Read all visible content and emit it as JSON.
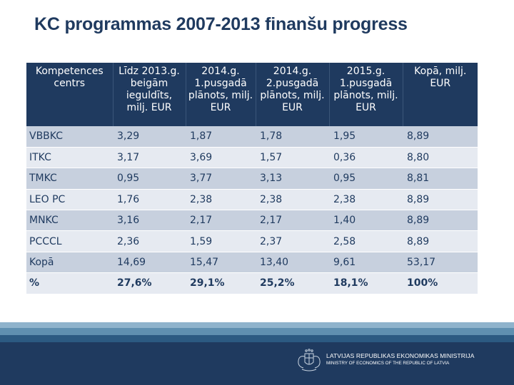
{
  "title": "KC programmas 2007-2013 finanšu progress",
  "table": {
    "headers": [
      "Kompetences centrs",
      "Līdz 2013.g. beigām ieguldīts, milj. EUR",
      "2014.g. 1.pusgadā plānots, milj. EUR",
      "2014.g. 2.pusgadā plānots, milj. EUR",
      "2015.g. 1.pusgadā plānots, milj. EUR",
      "Kopā, milj. EUR"
    ],
    "rows": [
      [
        "VBBKC",
        "3,29",
        "1,87",
        "1,78",
        "1,95",
        "8,89"
      ],
      [
        "ITKC",
        "3,17",
        "3,69",
        "1,57",
        "0,36",
        "8,80"
      ],
      [
        "TMKC",
        "0,95",
        "3,77",
        "3,13",
        "0,95",
        "8,81"
      ],
      [
        "LEO PC",
        "1,76",
        "2,38",
        "2,38",
        "2,38",
        "8,89"
      ],
      [
        "MNKC",
        "3,16",
        "2,17",
        "2,17",
        "1,40",
        "8,89"
      ],
      [
        "PCCCL",
        "2,36",
        "1,59",
        "2,37",
        "2,58",
        "8,89"
      ],
      [
        "Kopā",
        "14,69",
        "15,47",
        "13,40",
        "9,61",
        "53,17"
      ],
      [
        "%",
        "27,6%",
        "29,1%",
        "25,2%",
        "18,1%",
        "100%"
      ]
    ]
  },
  "footer": {
    "ministry_lv": "LATVIJAS REPUBLIKAS EKONOMIKAS MINISTRIJA",
    "ministry_en": "MINISTRY OF ECONOMICS OF THE REPUBLIC OF LATVIA",
    "crest_icon": "latvia-coat-of-arms-icon"
  },
  "colors": {
    "navy": "#1f3a5f",
    "row_dark": "#c7d0de",
    "row_light": "#e6eaf1"
  }
}
